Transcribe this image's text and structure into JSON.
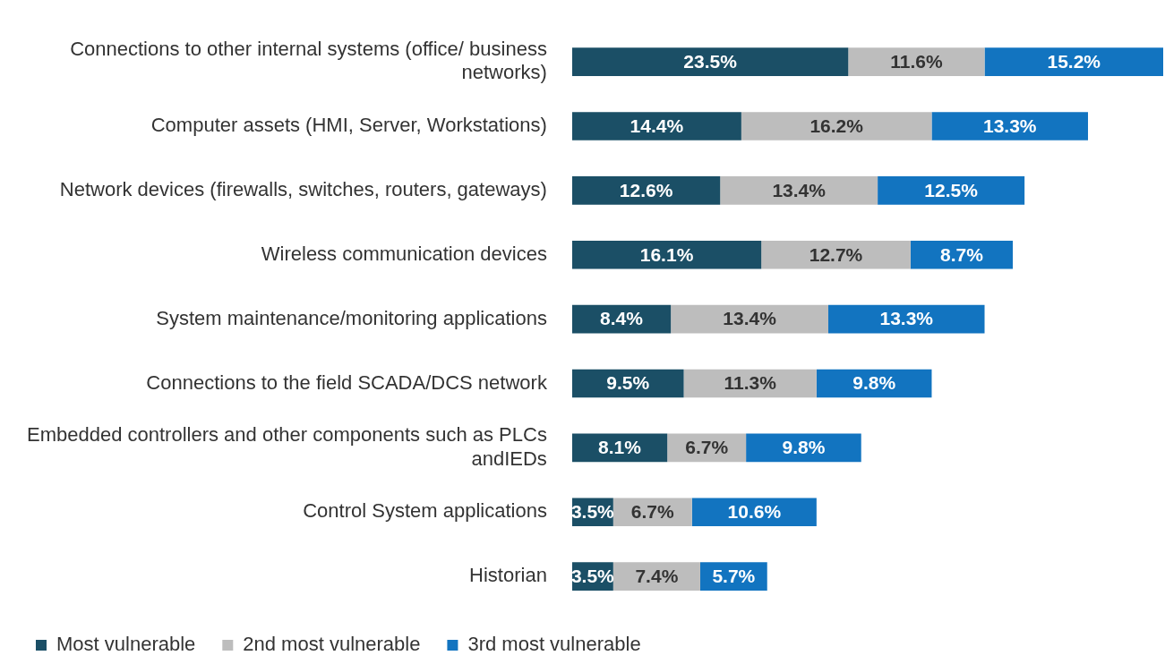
{
  "chart_data": {
    "type": "bar",
    "orientation": "horizontal",
    "stacked": true,
    "legend": "bottom left",
    "tick_labels": "y",
    "categories": [
      "Connections to other internal systems (office/ business networks)",
      "Computer assets (HMI, Server, Workstations)",
      "Network devices (firewalls, switches, routers, gateways)",
      "Wireless communication devices",
      "System maintenance/monitoring applications",
      "Connections to the field SCADA/DCS network",
      "Embedded controllers and other components such as PLCs andIEDs",
      "Control System applications",
      "Historian"
    ],
    "series": [
      {
        "name": "Most vulnerable",
        "color": "#1b4f66",
        "values": [
          23.5,
          14.4,
          12.6,
          16.1,
          8.4,
          9.5,
          8.1,
          3.5,
          3.5
        ],
        "value_labels": [
          "23.5%",
          "14.4%",
          "12.6%",
          "16.1%",
          "8.4%",
          "9.5%",
          "8.1%",
          "3.5%",
          "3.5%"
        ]
      },
      {
        "name": "2nd most vulnerable",
        "color": "#bdbdbd",
        "values": [
          11.6,
          16.2,
          13.4,
          12.7,
          13.4,
          11.3,
          6.7,
          6.7,
          7.4
        ],
        "value_labels": [
          "11.6%",
          "16.2%",
          "13.4%",
          "12.7%",
          "13.4%",
          "11.3%",
          "6.7%",
          "6.7%",
          "7.4%"
        ]
      },
      {
        "name": "3rd most vulnerable",
        "color": "#1274c0",
        "values": [
          15.2,
          13.3,
          12.5,
          8.7,
          13.3,
          9.8,
          9.8,
          10.6,
          5.7
        ],
        "value_labels": [
          "15.2%",
          "13.3%",
          "12.5%",
          "8.7%",
          "13.3%",
          "9.8%",
          "9.8%",
          "10.6%",
          "5.7%"
        ]
      }
    ]
  }
}
